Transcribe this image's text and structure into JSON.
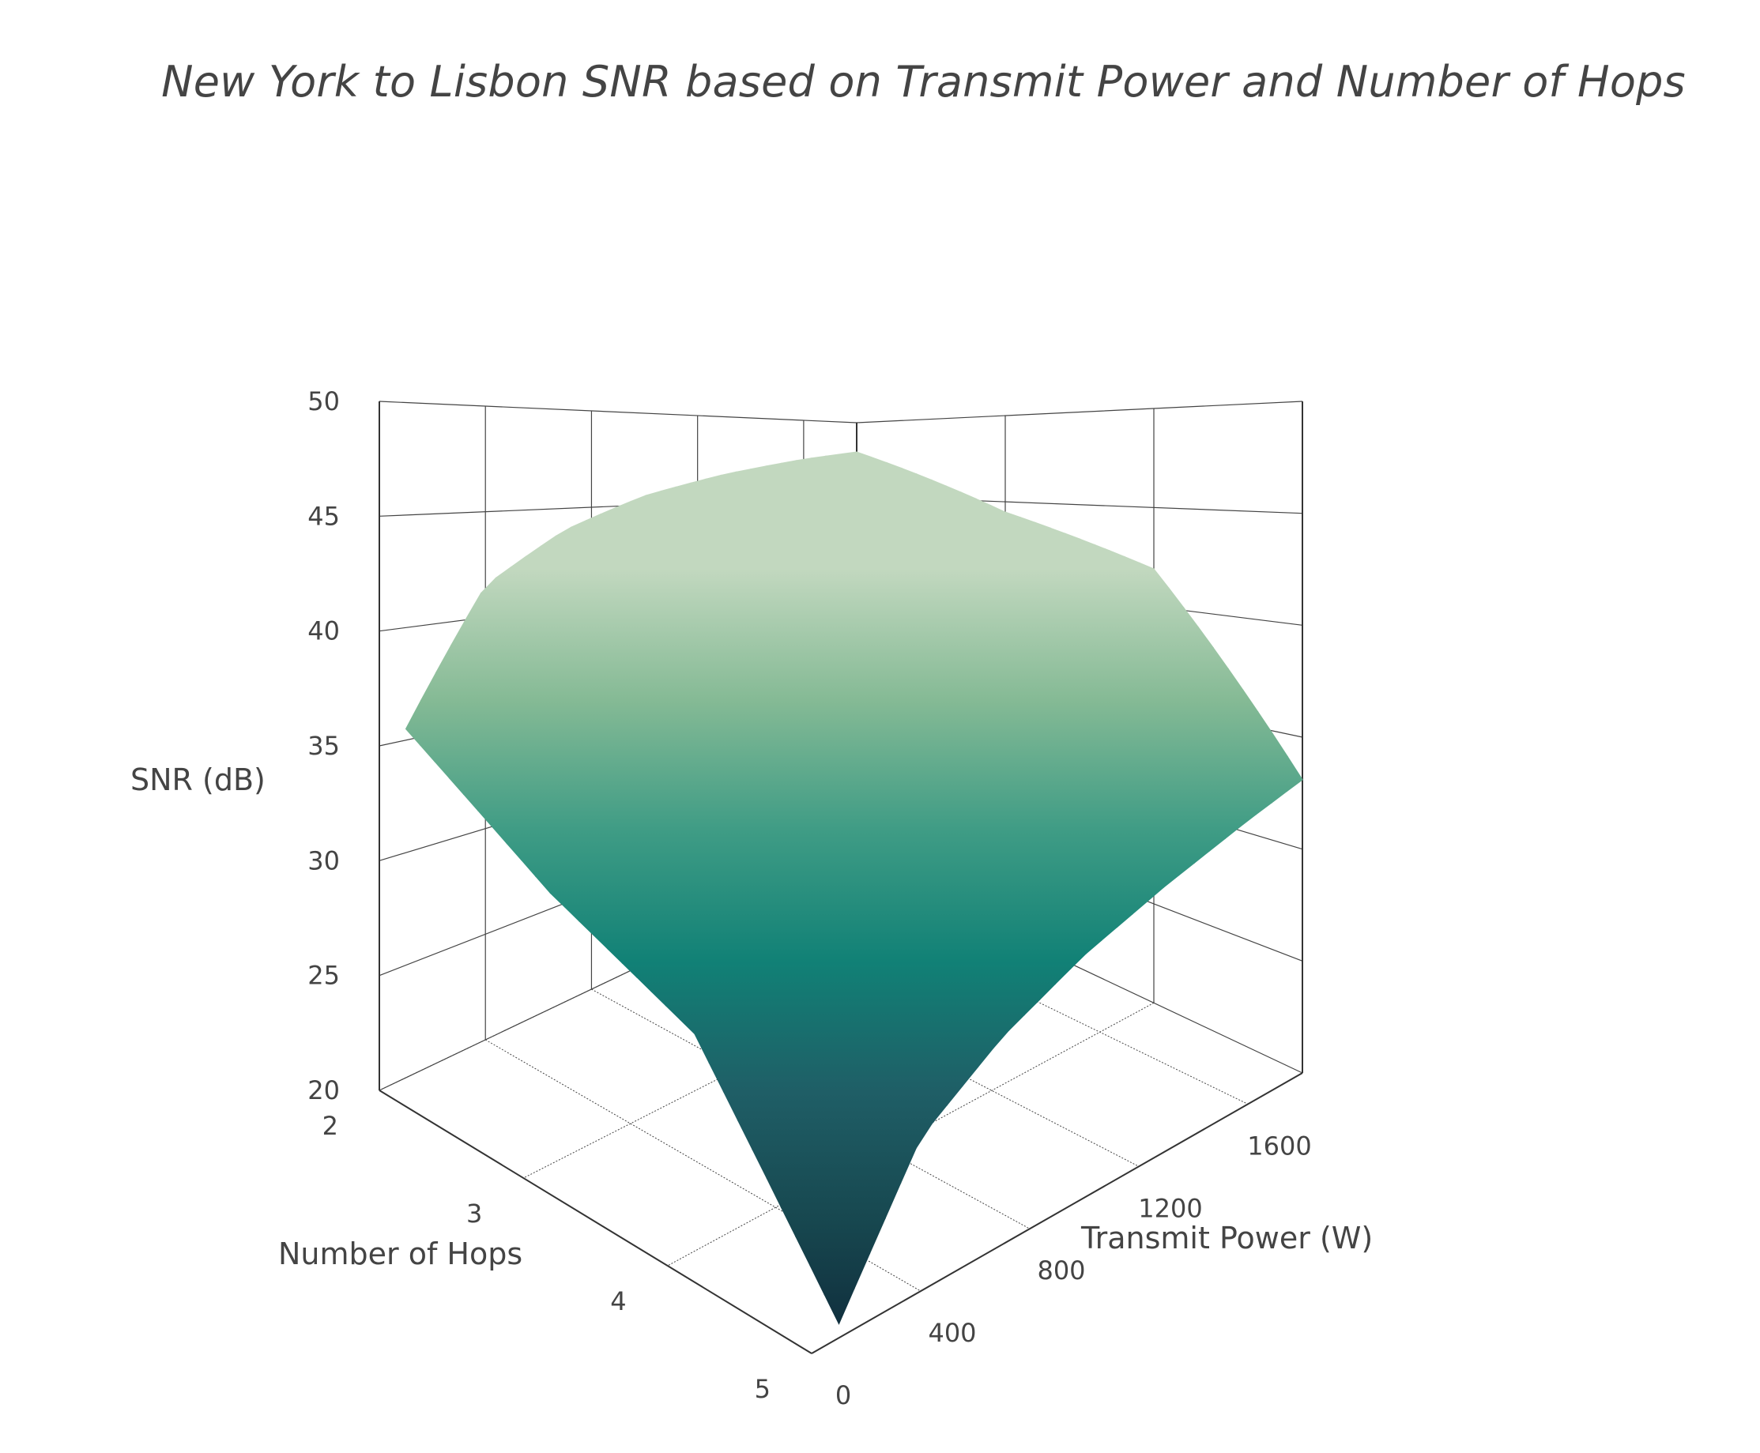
{
  "chart_data": {
    "type": "surface",
    "title": "New York to Lisbon SNR based on Transmit Power and Number of Hops",
    "x_axis": {
      "label": "Transmit Power (W)",
      "range": [
        0,
        1800
      ],
      "ticks": [
        0,
        400,
        800,
        1200,
        1600
      ]
    },
    "y_axis": {
      "label": "Number of Hops",
      "range": [
        2,
        5
      ],
      "ticks": [
        2,
        3,
        4,
        5
      ],
      "tick_labels": [
        "2",
        "3",
        "4",
        "5"
      ]
    },
    "z_axis": {
      "label": "SNR (dB)",
      "range": [
        20,
        50
      ],
      "ticks": [
        20,
        25,
        30,
        35,
        40,
        45,
        50
      ]
    },
    "surface": {
      "x_power_w": [
        100,
        400,
        700,
        1000,
        1300,
        1600,
        1800
      ],
      "y_hops": [
        2,
        3,
        4,
        5
      ],
      "z_snr_db": [
        [
          35.5,
          41.5,
          43.9,
          45.5,
          46.6,
          47.5,
          48.0
        ],
        [
          31.9,
          37.9,
          40.3,
          41.8,
          43.0,
          43.9,
          44.4
        ],
        [
          29.4,
          35.4,
          37.8,
          39.3,
          40.5,
          41.4,
          41.9
        ],
        [
          20.6,
          26.6,
          29.0,
          30.6,
          31.7,
          32.6,
          33.1
        ]
      ]
    },
    "colorscale": [
      "#0f2a3a",
      "#17474f",
      "#1f5e66",
      "#118176",
      "#3f9c85",
      "#85ba95",
      "#c2d8bf"
    ],
    "grid": true
  }
}
